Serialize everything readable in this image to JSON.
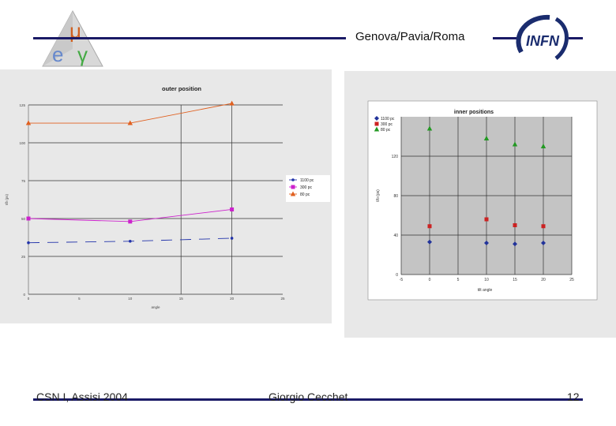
{
  "header": {
    "title": "Genova/Pavia/Roma"
  },
  "logos": {
    "left": {
      "mu": "μ",
      "e": "e",
      "gamma": "γ"
    },
    "right": {
      "text": "INFN"
    }
  },
  "footer": {
    "left": "CSN I, Assisi 2004",
    "mid": "Giorgio Cecchet",
    "right": "12"
  },
  "chart_data": [
    {
      "type": "line",
      "title": "outer position",
      "ylabel": "t/b (ps)",
      "xlabel": "angle",
      "x": [
        0,
        20
      ],
      "ylim": [
        0,
        125
      ],
      "yticks": [
        0,
        25,
        50,
        75,
        100,
        125
      ],
      "xticks": [
        0,
        5,
        10,
        15,
        20,
        25
      ],
      "grid": true,
      "legend_position": "right",
      "series": [
        {
          "name": "1100 pc",
          "color": "#2233aa",
          "x": [
            0,
            10,
            20
          ],
          "values": [
            34,
            35,
            37
          ]
        },
        {
          "name": "300 pc",
          "color": "#cc22cc",
          "x": [
            0,
            10,
            20
          ],
          "values": [
            50,
            48,
            56
          ]
        },
        {
          "name": "80 pc",
          "color": "#e06020",
          "x": [
            0,
            10,
            20
          ],
          "values": [
            113,
            113,
            126
          ]
        }
      ]
    },
    {
      "type": "scatter",
      "title": "inner positions",
      "ylabel": "t/b (ps)",
      "xlabel": "tilt angle",
      "xlim": [
        -5,
        25
      ],
      "ylim": [
        0,
        160
      ],
      "xticks": [
        -5,
        0,
        5,
        10,
        15,
        20,
        25
      ],
      "yticks": [
        0,
        40,
        80,
        120
      ],
      "grid": true,
      "legend_position": "top-left",
      "series": [
        {
          "name": "1100 pc",
          "color": "#22339a",
          "marker": "diamond",
          "x": [
            0,
            10,
            15,
            20
          ],
          "values": [
            33,
            32,
            31,
            32
          ]
        },
        {
          "name": "300 pc",
          "color": "#cc2222",
          "marker": "square",
          "x": [
            0,
            10,
            15,
            20
          ],
          "values": [
            49,
            56,
            50,
            49
          ]
        },
        {
          "name": "80 pc",
          "color": "#229922",
          "marker": "triangle",
          "x": [
            0,
            10,
            15,
            20
          ],
          "values": [
            148,
            138,
            132,
            130
          ]
        }
      ]
    }
  ]
}
